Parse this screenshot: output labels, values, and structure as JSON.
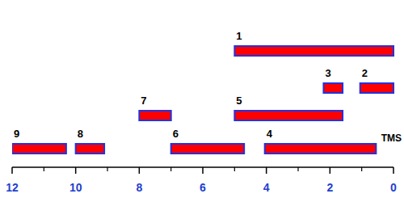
{
  "chart_data": {
    "type": "timeline",
    "xlim": [
      12,
      0
    ],
    "xticks": [
      12,
      10,
      8,
      6,
      4,
      2,
      0
    ],
    "color": "#ff0000",
    "items": [
      {
        "label": "1",
        "start": 5,
        "end": 0,
        "lane": 1
      },
      {
        "label": "2",
        "start": 1.05,
        "end": 0,
        "lane": 2
      },
      {
        "label": "3",
        "start": 2.2,
        "end": 1.6,
        "lane": 2
      },
      {
        "label": "4",
        "start": 4.05,
        "end": 0.55,
        "lane": 4
      },
      {
        "label": "5",
        "start": 5,
        "end": 1.6,
        "lane": 3
      },
      {
        "label": "6",
        "start": 7,
        "end": 4.7,
        "lane": 4
      },
      {
        "label": "7",
        "start": 8,
        "end": 7,
        "lane": 3
      },
      {
        "label": "8",
        "start": 10,
        "end": 9.1,
        "lane": 4
      },
      {
        "label": "9",
        "start": 12,
        "end": 10.3,
        "lane": 4
      }
    ],
    "annotations": [
      {
        "text": "TMS",
        "x": 0
      }
    ]
  }
}
